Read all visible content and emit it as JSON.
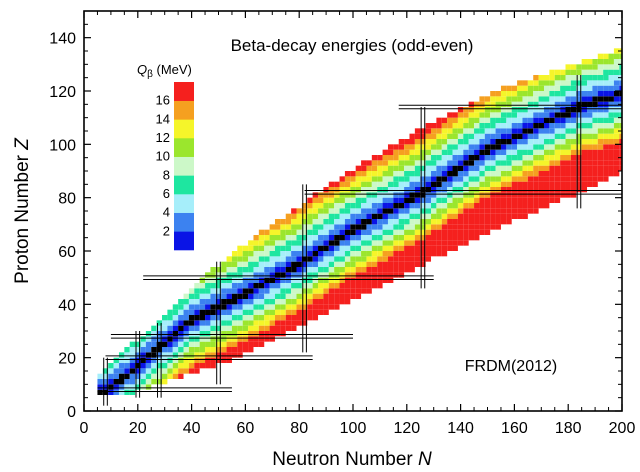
{
  "chart_data": {
    "type": "heatmap",
    "title": "Beta-decay energies (odd-even)",
    "xlabel": "Neutron Number",
    "xlabel_symbol": "N",
    "ylabel": "Proton Number",
    "ylabel_symbol": "Z",
    "xlim": [
      0,
      200
    ],
    "ylim": [
      0,
      150
    ],
    "xticks": [
      0,
      20,
      40,
      60,
      80,
      100,
      120,
      140,
      160,
      180,
      200
    ],
    "yticks": [
      0,
      20,
      40,
      60,
      80,
      100,
      120,
      140
    ],
    "annotation": "FRDM(2012)",
    "colorbar": {
      "label_symbol": "Q",
      "label_subscript": "β",
      "label_unit": " (MeV)",
      "ticks": [
        2,
        4,
        6,
        8,
        10,
        12,
        14,
        16
      ],
      "colors": [
        "#0a14e6",
        "#3c82f0",
        "#a6eefa",
        "#1ee6a0",
        "#ccf8c8",
        "#9be62d",
        "#f5f52a",
        "#f5a020",
        "#f5201e"
      ]
    },
    "magic_numbers": {
      "N": [
        8,
        20,
        28,
        50,
        82,
        126,
        184
      ],
      "Z": [
        8,
        20,
        28,
        50,
        82,
        114
      ]
    },
    "magic_line_ranges": {
      "N": [
        [
          2,
          20
        ],
        [
          5,
          30
        ],
        [
          5,
          33
        ],
        [
          10,
          56
        ],
        [
          22,
          85
        ],
        [
          46,
          114
        ],
        [
          76,
          126
        ]
      ],
      "Z": [
        [
          5,
          55
        ],
        [
          8,
          85
        ],
        [
          10,
          100
        ],
        [
          22,
          130
        ],
        [
          82,
          200
        ],
        [
          117,
          200
        ]
      ]
    },
    "stability_line_points": {
      "N": [
        8,
        20,
        40,
        60,
        80,
        100,
        126,
        150,
        184,
        200
      ],
      "Z": [
        7,
        17,
        34,
        44,
        55,
        68,
        82,
        98,
        114,
        119
      ]
    },
    "band_edges_neutron_rich": {
      "N": [
        8,
        20,
        40,
        60,
        80,
        100,
        130,
        160,
        200
      ],
      "Z": [
        7,
        8,
        15,
        22,
        32,
        42,
        58,
        72,
        90
      ]
    },
    "band_edges_proton_rich": {
      "N": [
        6,
        20,
        40,
        60,
        80,
        100,
        130,
        160,
        200
      ],
      "Z": [
        14,
        26,
        46,
        62,
        76,
        90,
        108,
        122,
        135
      ]
    }
  }
}
